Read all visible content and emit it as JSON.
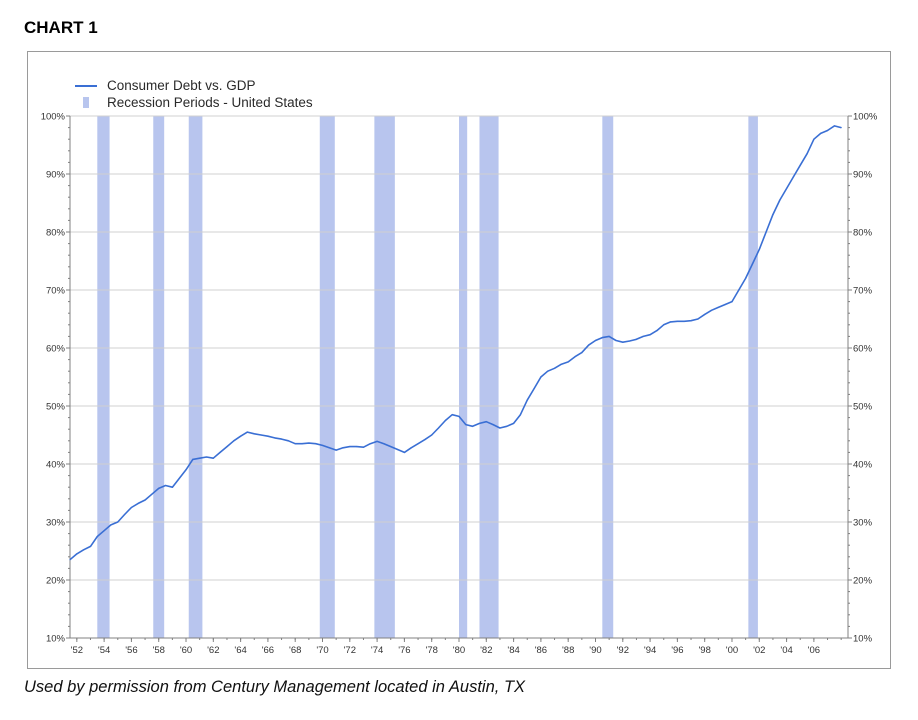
{
  "header": {
    "label": "CHART 1"
  },
  "footer": {
    "caption": "Used by permission from Century Management located in Austin, TX"
  },
  "colors": {
    "line": "#3a6fd4",
    "recession": "#b8c5ee",
    "grid": "#d0d0d0",
    "axis": "#808080"
  },
  "chart_data": {
    "type": "line",
    "title": "",
    "xlabel": "",
    "ylabel": "",
    "xlim": [
      1951.5,
      2008.5
    ],
    "ylim": [
      10,
      100
    ],
    "grid": true,
    "legend_position": "top-left",
    "legend": [
      "Consumer Debt vs. GDP",
      "Recession Periods - United States"
    ],
    "y_ticks": [
      10,
      20,
      30,
      40,
      50,
      60,
      70,
      80,
      90,
      100
    ],
    "y_tick_labels": [
      "10%",
      "20%",
      "30%",
      "40%",
      "50%",
      "60%",
      "70%",
      "80%",
      "90%",
      "100%"
    ],
    "x_ticks": [
      1952,
      1954,
      1956,
      1958,
      1960,
      1962,
      1964,
      1966,
      1968,
      1970,
      1972,
      1974,
      1976,
      1978,
      1980,
      1982,
      1984,
      1986,
      1988,
      1990,
      1992,
      1994,
      1996,
      1998,
      2000,
      2002,
      2004,
      2006
    ],
    "x_tick_labels": [
      "'52",
      "'54",
      "'56",
      "'58",
      "'60",
      "'62",
      "'64",
      "'66",
      "'68",
      "'70",
      "'72",
      "'74",
      "'76",
      "'78",
      "'80",
      "'82",
      "'84",
      "'86",
      "'88",
      "'90",
      "'92",
      "'94",
      "'96",
      "'98",
      "'00",
      "'02",
      "'04",
      "'06"
    ],
    "recessions": [
      [
        1953.5,
        1954.4
      ],
      [
        1957.6,
        1958.4
      ],
      [
        1960.2,
        1961.2
      ],
      [
        1969.8,
        1970.9
      ],
      [
        1973.8,
        1975.3
      ],
      [
        1980.0,
        1980.6
      ],
      [
        1981.5,
        1982.9
      ],
      [
        1990.5,
        1991.3
      ],
      [
        2001.2,
        2001.9
      ]
    ],
    "series": [
      {
        "name": "Consumer Debt vs. GDP",
        "x": [
          1951.5,
          1952.0,
          1952.5,
          1953.0,
          1953.5,
          1954.0,
          1954.5,
          1955.0,
          1955.5,
          1956.0,
          1956.5,
          1957.0,
          1957.5,
          1958.0,
          1958.5,
          1959.0,
          1959.5,
          1960.0,
          1960.5,
          1961.0,
          1961.5,
          1962.0,
          1962.5,
          1963.0,
          1963.5,
          1964.0,
          1964.5,
          1965.0,
          1965.5,
          1966.0,
          1966.5,
          1967.0,
          1967.5,
          1968.0,
          1968.5,
          1969.0,
          1969.5,
          1970.0,
          1970.5,
          1971.0,
          1971.5,
          1972.0,
          1972.5,
          1973.0,
          1973.5,
          1974.0,
          1974.5,
          1975.0,
          1975.5,
          1976.0,
          1976.5,
          1977.0,
          1977.5,
          1978.0,
          1978.5,
          1979.0,
          1979.5,
          1980.0,
          1980.5,
          1981.0,
          1981.5,
          1982.0,
          1982.5,
          1983.0,
          1983.5,
          1984.0,
          1984.5,
          1985.0,
          1985.5,
          1986.0,
          1986.5,
          1987.0,
          1987.5,
          1988.0,
          1988.5,
          1989.0,
          1989.5,
          1990.0,
          1990.5,
          1991.0,
          1991.5,
          1992.0,
          1992.5,
          1993.0,
          1993.5,
          1994.0,
          1994.5,
          1995.0,
          1995.5,
          1996.0,
          1996.5,
          1997.0,
          1997.5,
          1998.0,
          1998.5,
          1999.0,
          1999.5,
          2000.0,
          2000.5,
          2001.0,
          2001.5,
          2002.0,
          2002.5,
          2003.0,
          2003.5,
          2004.0,
          2004.5,
          2005.0,
          2005.5,
          2006.0,
          2006.5,
          2007.0,
          2007.5,
          2008.0
        ],
        "values": [
          23.5,
          24.5,
          25.2,
          25.8,
          27.5,
          28.5,
          29.5,
          30.0,
          31.3,
          32.5,
          33.2,
          33.8,
          34.8,
          35.8,
          36.3,
          36.0,
          37.5,
          39.0,
          40.8,
          41.0,
          41.2,
          41.0,
          42.0,
          43.0,
          44.0,
          44.8,
          45.5,
          45.2,
          45.0,
          44.8,
          44.5,
          44.3,
          44.0,
          43.5,
          43.5,
          43.6,
          43.5,
          43.2,
          42.8,
          42.4,
          42.8,
          43.0,
          43.0,
          42.9,
          43.5,
          43.9,
          43.5,
          43.0,
          42.5,
          42.0,
          42.8,
          43.5,
          44.2,
          45.0,
          46.2,
          47.5,
          48.5,
          48.2,
          46.8,
          46.5,
          47.0,
          47.3,
          46.8,
          46.2,
          46.5,
          47.0,
          48.5,
          51.0,
          53.0,
          55.0,
          56.0,
          56.5,
          57.2,
          57.6,
          58.5,
          59.2,
          60.5,
          61.3,
          61.8,
          62.0,
          61.3,
          61.0,
          61.2,
          61.5,
          62.0,
          62.3,
          63.0,
          64.0,
          64.5,
          64.6,
          64.6,
          64.7,
          65.0,
          65.8,
          66.5,
          67.0,
          67.5,
          68.0,
          70.0,
          72.0,
          74.5,
          77.0,
          80.0,
          83.0,
          85.5,
          87.5,
          89.5,
          91.5,
          93.5,
          96.0,
          97.0,
          97.5,
          98.3,
          98.0
        ]
      }
    ]
  }
}
